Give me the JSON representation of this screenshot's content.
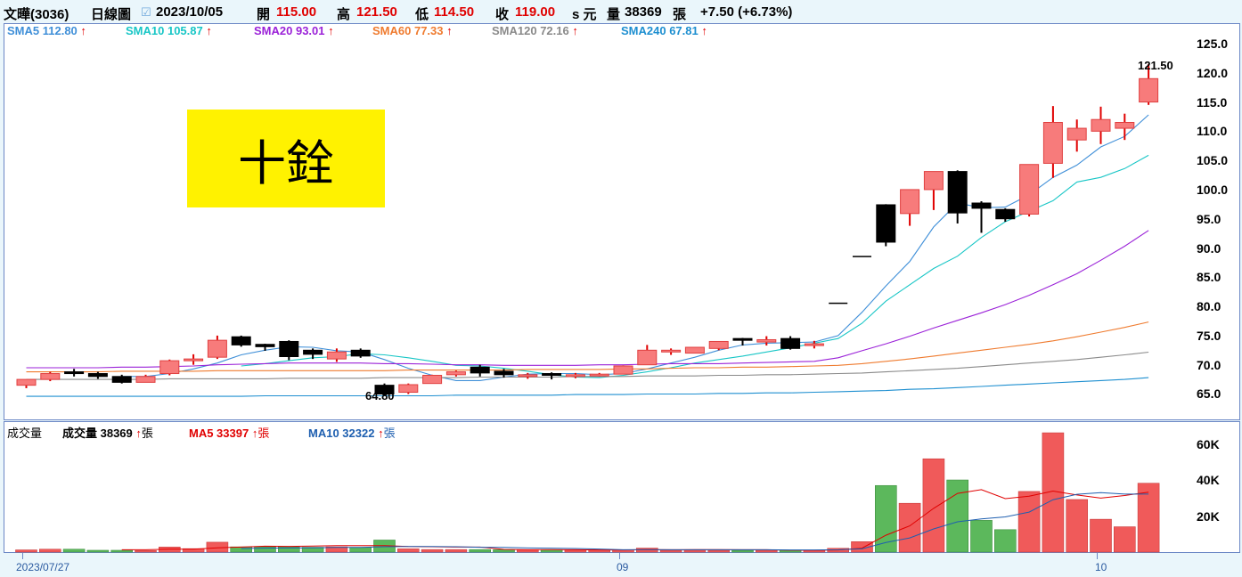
{
  "header": {
    "stock": "文曄(3036)",
    "period": "日線圖",
    "date": "2023/10/05",
    "open_label": "開",
    "open": "115.00",
    "high_label": "高",
    "high": "121.50",
    "low_label": "低",
    "low": "114.50",
    "close_label": "收",
    "close": "119.00",
    "unit_label": "s 元",
    "volume_label": "量",
    "volume": "38369",
    "volume_unit": "張",
    "change": "+7.50 (+6.73%)"
  },
  "sma_legend": [
    {
      "label": "SMA5 112.80",
      "color": "#3f8fd8"
    },
    {
      "label": "SMA10 105.87",
      "color": "#18c6c6"
    },
    {
      "label": "SMA20 93.01",
      "color": "#9b22d8"
    },
    {
      "label": "SMA60 77.33",
      "color": "#ef7b2f"
    },
    {
      "label": "SMA120 72.16",
      "color": "#8a8a8a"
    },
    {
      "label": "SMA240 67.81",
      "color": "#1e8fd0"
    }
  ],
  "arrow": "↑",
  "annotation": {
    "text": "十銓"
  },
  "volume_legend": {
    "title": "成交量",
    "vol": "成交量 38369",
    "vol_unit": "張",
    "ma5": "MA5 33397",
    "ma10": "MA10 32322",
    "unit": "張"
  },
  "chart_data": {
    "type": "candlestick",
    "price_axis": {
      "ticks": [
        "125.0",
        "120.0",
        "115.0",
        "110.0",
        "105.0",
        "100.0",
        "95.0",
        "90.0",
        "85.0",
        "80.0",
        "75.0",
        "70.0",
        "65.0"
      ],
      "ylim": [
        60.5,
        128.5
      ]
    },
    "volume_axis": {
      "ticks": [
        "60K",
        "40K",
        "20K"
      ],
      "ylim": [
        0,
        70000
      ]
    },
    "x_labels": [
      "2023/07/27",
      "09",
      "10"
    ],
    "high_annotation": "121.50",
    "low_annotation": "64.80",
    "candles": [
      {
        "o": 66.5,
        "h": 67.5,
        "l": 66.0,
        "c": 67.5
      },
      {
        "o": 67.5,
        "h": 68.8,
        "l": 67.2,
        "c": 68.5
      },
      {
        "o": 68.8,
        "h": 69.3,
        "l": 68.0,
        "c": 68.5
      },
      {
        "o": 68.5,
        "h": 68.8,
        "l": 67.6,
        "c": 68.0
      },
      {
        "o": 68.0,
        "h": 68.3,
        "l": 66.8,
        "c": 67.0
      },
      {
        "o": 67.0,
        "h": 68.3,
        "l": 67.0,
        "c": 68.0
      },
      {
        "o": 68.5,
        "h": 70.9,
        "l": 68.2,
        "c": 70.7
      },
      {
        "o": 70.7,
        "h": 71.8,
        "l": 70.0,
        "c": 71.0
      },
      {
        "o": 71.3,
        "h": 75.0,
        "l": 71.0,
        "c": 74.2
      },
      {
        "o": 74.8,
        "h": 75.0,
        "l": 73.1,
        "c": 73.4
      },
      {
        "o": 73.5,
        "h": 73.6,
        "l": 72.4,
        "c": 73.1
      },
      {
        "o": 74.0,
        "h": 74.2,
        "l": 70.8,
        "c": 71.4
      },
      {
        "o": 72.5,
        "h": 72.8,
        "l": 71.0,
        "c": 71.8
      },
      {
        "o": 71.0,
        "h": 72.8,
        "l": 70.5,
        "c": 72.2
      },
      {
        "o": 72.5,
        "h": 72.8,
        "l": 71.2,
        "c": 71.5
      },
      {
        "o": 66.5,
        "h": 66.8,
        "l": 64.8,
        "c": 65.0
      },
      {
        "o": 65.3,
        "h": 66.8,
        "l": 65.0,
        "c": 66.6
      },
      {
        "o": 66.8,
        "h": 68.3,
        "l": 66.8,
        "c": 68.2
      },
      {
        "o": 68.3,
        "h": 69.0,
        "l": 68.0,
        "c": 68.8
      },
      {
        "o": 69.6,
        "h": 70.0,
        "l": 68.0,
        "c": 68.6
      },
      {
        "o": 68.9,
        "h": 69.3,
        "l": 67.8,
        "c": 68.3
      },
      {
        "o": 68.2,
        "h": 68.6,
        "l": 67.6,
        "c": 68.3
      },
      {
        "o": 68.5,
        "h": 68.7,
        "l": 67.5,
        "c": 68.3
      },
      {
        "o": 68.3,
        "h": 68.6,
        "l": 67.7,
        "c": 68.3
      },
      {
        "o": 68.4,
        "h": 68.6,
        "l": 68.0,
        "c": 68.4
      },
      {
        "o": 68.4,
        "h": 69.9,
        "l": 68.4,
        "c": 69.8
      },
      {
        "o": 70.0,
        "h": 73.4,
        "l": 70.0,
        "c": 72.5
      },
      {
        "o": 72.5,
        "h": 72.8,
        "l": 71.7,
        "c": 72.5
      },
      {
        "o": 72.0,
        "h": 73.0,
        "l": 72.0,
        "c": 73.0
      },
      {
        "o": 72.8,
        "h": 74.0,
        "l": 72.5,
        "c": 74.0
      },
      {
        "o": 74.5,
        "h": 74.6,
        "l": 73.3,
        "c": 74.2
      },
      {
        "o": 73.9,
        "h": 74.9,
        "l": 73.3,
        "c": 74.3
      },
      {
        "o": 74.5,
        "h": 74.9,
        "l": 72.6,
        "c": 72.8
      },
      {
        "o": 73.3,
        "h": 74.1,
        "l": 72.8,
        "c": 73.6
      },
      {
        "o": 80.5,
        "h": 80.5,
        "l": 80.5,
        "c": 80.5
      },
      {
        "o": 88.5,
        "h": 88.5,
        "l": 88.5,
        "c": 88.5
      },
      {
        "o": 97.4,
        "h": 97.5,
        "l": 90.3,
        "c": 91.0
      },
      {
        "o": 95.9,
        "h": 100.0,
        "l": 93.8,
        "c": 100.0
      },
      {
        "o": 100.0,
        "h": 103.1,
        "l": 96.5,
        "c": 103.1
      },
      {
        "o": 103.1,
        "h": 103.3,
        "l": 94.2,
        "c": 96.0
      },
      {
        "o": 97.7,
        "h": 98.0,
        "l": 92.6,
        "c": 96.8
      },
      {
        "o": 96.6,
        "h": 96.8,
        "l": 94.5,
        "c": 95.0
      },
      {
        "o": 95.8,
        "h": 104.3,
        "l": 95.4,
        "c": 104.3
      },
      {
        "o": 104.5,
        "h": 114.3,
        "l": 102.0,
        "c": 111.5
      },
      {
        "o": 108.5,
        "h": 112.0,
        "l": 106.5,
        "c": 110.5
      },
      {
        "o": 110.0,
        "h": 114.2,
        "l": 107.8,
        "c": 112.0
      },
      {
        "o": 110.5,
        "h": 113.0,
        "l": 108.5,
        "c": 111.5
      },
      {
        "o": 115.0,
        "h": 121.5,
        "l": 114.5,
        "c": 119.0
      }
    ],
    "volumes": [
      1200,
      1600,
      1600,
      1000,
      1000,
      800,
      2800,
      1900,
      5500,
      2900,
      2900,
      2900,
      2700,
      2900,
      2600,
      6700,
      1800,
      1400,
      1400,
      1400,
      1300,
      1300,
      1300,
      1100,
      1100,
      1200,
      2200,
      1000,
      1100,
      1000,
      1000,
      1000,
      1100,
      1000,
      2100,
      5800,
      37100,
      27200,
      52000,
      40200,
      17700,
      12500,
      33800,
      66500,
      29300,
      18300,
      14100,
      38369
    ],
    "sma": {
      "SMA5": [
        null,
        null,
        null,
        null,
        68.0,
        68.0,
        68.5,
        69.3,
        70.3,
        71.7,
        72.5,
        73.1,
        73.0,
        72.4,
        72.2,
        70.9,
        69.4,
        68.2,
        67.3,
        67.3,
        67.9,
        68.4,
        68.5,
        68.5,
        68.3,
        68.5,
        69.3,
        70.3,
        71.3,
        72.5,
        73.4,
        73.7,
        73.8,
        73.9,
        75.0,
        79.0,
        83.5,
        87.7,
        93.6,
        97.7,
        96.9,
        97.0,
        99.1,
        102.1,
        104.2,
        107.3,
        109.1,
        112.8
      ],
      "SMA10": [
        null,
        null,
        null,
        null,
        null,
        null,
        null,
        null,
        null,
        69.8,
        70.2,
        70.7,
        71.2,
        71.4,
        71.9,
        71.7,
        71.2,
        70.6,
        69.9,
        69.8,
        69.4,
        68.9,
        68.3,
        67.9,
        67.8,
        68.2,
        68.8,
        69.5,
        70.3,
        70.9,
        71.5,
        72.2,
        72.9,
        73.7,
        74.5,
        77.1,
        80.9,
        83.7,
        86.5,
        88.6,
        91.8,
        94.5,
        96.3,
        98.1,
        101.3,
        102.1,
        103.6,
        105.87
      ],
      "SMA20": [
        69.5,
        69.5,
        69.5,
        69.5,
        69.6,
        69.6,
        69.7,
        69.8,
        70.0,
        70.1,
        70.2,
        70.3,
        70.3,
        70.3,
        70.3,
        70.2,
        70.2,
        70.1,
        70.0,
        70.0,
        69.9,
        69.9,
        69.9,
        69.9,
        70.0,
        70.0,
        70.1,
        70.2,
        70.2,
        70.2,
        70.3,
        70.4,
        70.5,
        70.6,
        71.2,
        72.4,
        73.6,
        74.9,
        76.3,
        77.6,
        78.9,
        80.3,
        81.9,
        83.7,
        85.6,
        87.9,
        90.3,
        93.01
      ],
      "SMA60": [
        68.8,
        68.8,
        68.8,
        68.8,
        68.9,
        68.9,
        68.9,
        68.9,
        69.0,
        69.0,
        69.0,
        69.0,
        69.0,
        69.0,
        69.0,
        69.0,
        69.1,
        69.1,
        69.1,
        69.1,
        69.1,
        69.2,
        69.2,
        69.2,
        69.2,
        69.3,
        69.3,
        69.4,
        69.5,
        69.5,
        69.6,
        69.6,
        69.7,
        69.8,
        69.9,
        70.2,
        70.6,
        71.0,
        71.5,
        72.0,
        72.5,
        73.0,
        73.5,
        74.1,
        74.8,
        75.6,
        76.4,
        77.33
      ],
      "SMA120": [
        67.5,
        67.5,
        67.5,
        67.5,
        67.5,
        67.5,
        67.6,
        67.6,
        67.6,
        67.6,
        67.6,
        67.7,
        67.7,
        67.7,
        67.7,
        67.8,
        67.8,
        67.8,
        67.8,
        67.9,
        67.9,
        67.9,
        67.9,
        68.0,
        68.0,
        68.0,
        68.1,
        68.1,
        68.1,
        68.2,
        68.2,
        68.3,
        68.3,
        68.4,
        68.5,
        68.6,
        68.8,
        69.0,
        69.2,
        69.4,
        69.7,
        70.0,
        70.3,
        70.6,
        70.9,
        71.3,
        71.7,
        72.16
      ],
      "SMA240": [
        64.6,
        64.6,
        64.6,
        64.6,
        64.6,
        64.6,
        64.6,
        64.6,
        64.6,
        64.6,
        64.7,
        64.7,
        64.7,
        64.7,
        64.7,
        64.7,
        64.7,
        64.7,
        64.8,
        64.8,
        64.8,
        64.8,
        64.8,
        64.9,
        64.9,
        64.9,
        65.0,
        65.0,
        65.0,
        65.1,
        65.1,
        65.2,
        65.2,
        65.3,
        65.4,
        65.5,
        65.6,
        65.8,
        65.9,
        66.1,
        66.3,
        66.5,
        66.7,
        66.9,
        67.1,
        67.3,
        67.5,
        67.81
      ]
    },
    "vol_ma": {
      "MA5": [
        null,
        null,
        null,
        null,
        1300,
        1300,
        1600,
        1600,
        2400,
        2800,
        3300,
        3200,
        3400,
        3600,
        3600,
        3600,
        3100,
        3000,
        2800,
        2800,
        1500,
        1300,
        1400,
        1300,
        1200,
        1200,
        1400,
        1300,
        1400,
        1400,
        1300,
        1300,
        1000,
        1000,
        1200,
        2200,
        9400,
        14600,
        24400,
        32700,
        34800,
        29800,
        31200,
        34000,
        31800,
        30100,
        31500,
        33397
      ],
      "MA10": [
        null,
        null,
        null,
        null,
        null,
        null,
        null,
        null,
        null,
        2000,
        2200,
        2300,
        2400,
        2600,
        2600,
        3000,
        3100,
        3100,
        3000,
        2700,
        2600,
        2300,
        2200,
        2000,
        1700,
        1300,
        1400,
        1300,
        1300,
        1300,
        1300,
        1300,
        1200,
        1200,
        1300,
        1800,
        5300,
        7900,
        12900,
        16900,
        18500,
        19600,
        22300,
        29200,
        32200,
        33100,
        32300,
        32322
      ]
    }
  }
}
